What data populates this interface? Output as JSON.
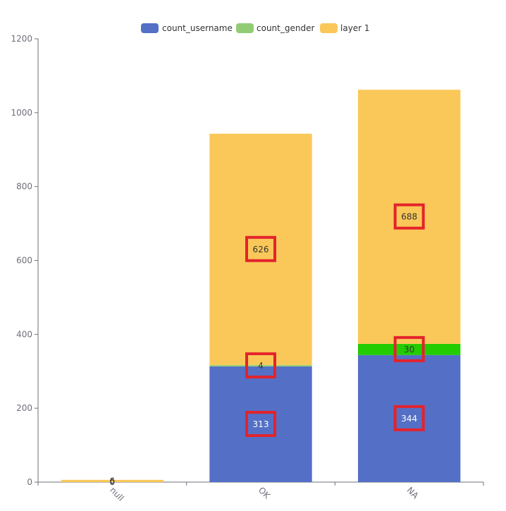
{
  "colors": {
    "axis": "#6e7079",
    "highlight_box": "#e3232c"
  },
  "chart_data": {
    "type": "bar",
    "stacked": true,
    "categories": [
      "null",
      "OK",
      "NA"
    ],
    "series": [
      {
        "name": "count_username",
        "color": "#5470c6",
        "label_color": "#ffffff",
        "values": [
          0,
          313,
          344
        ]
      },
      {
        "name": "count_gender",
        "color": "#91cc75",
        "label_color": "#333333",
        "values": [
          0,
          4,
          30
        ],
        "special_colors": {
          "NA": "#22cc00"
        }
      },
      {
        "name": "layer 1",
        "color": "#fac858",
        "label_color": "#333333",
        "values": [
          6,
          626,
          688
        ]
      }
    ],
    "ylim": [
      0,
      1200
    ],
    "yticks": [
      0,
      200,
      400,
      600,
      800,
      1000,
      1200
    ],
    "grid": false,
    "legend_position": "top-center",
    "xlabel_rotation": 45,
    "highlighted_labels": [
      {
        "category": "OK",
        "series": "count_username"
      },
      {
        "category": "OK",
        "series": "count_gender"
      },
      {
        "category": "OK",
        "series": "layer 1"
      },
      {
        "category": "NA",
        "series": "count_username"
      },
      {
        "category": "NA",
        "series": "count_gender"
      },
      {
        "category": "NA",
        "series": "layer 1"
      }
    ]
  }
}
